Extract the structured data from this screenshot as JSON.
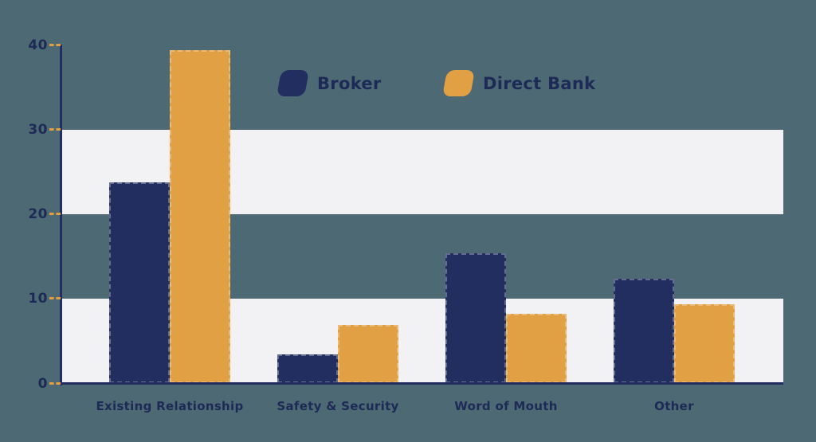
{
  "page": {
    "background_color": "#4d6a74",
    "band_color": "#f2f1f3",
    "axis_color": "#212e5f",
    "tick_mark_color": "#e2a044",
    "text_color": "#1d2a56"
  },
  "chart_data": {
    "type": "bar",
    "title": "",
    "categories": [
      "Existing Relationship",
      "Safety & Security",
      "Word of Mouth",
      "Other"
    ],
    "series": [
      {
        "name": "Broker",
        "color": "#212e5f",
        "values": [
          23.8,
          3.4,
          15.4,
          12.4
        ]
      },
      {
        "name": "Direct Bank",
        "color": "#e2a044",
        "values": [
          39.4,
          6.9,
          8.2,
          9.4
        ]
      }
    ],
    "ylim": [
      0,
      40
    ],
    "yticks": [
      0,
      10,
      20,
      30,
      40
    ],
    "grid_bands": [
      [
        0,
        10
      ],
      [
        20,
        30
      ]
    ],
    "legend_position": "top-center",
    "grid": "alternating-horizontal-bands",
    "xlabel": "",
    "ylabel": ""
  }
}
